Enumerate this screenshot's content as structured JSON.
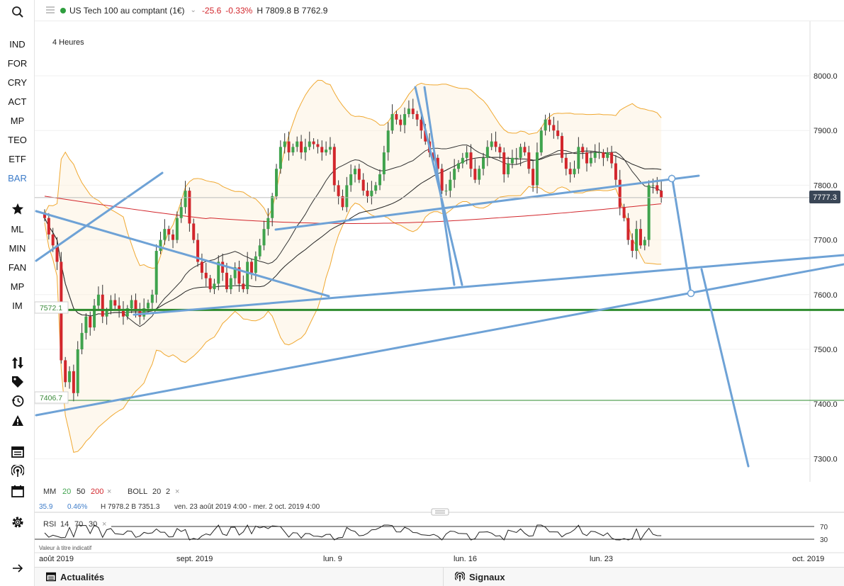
{
  "sidebar": {
    "items": [
      {
        "label": "IND",
        "active": false
      },
      {
        "label": "FOR",
        "active": false
      },
      {
        "label": "CRY",
        "active": false
      },
      {
        "label": "ACT",
        "active": false
      },
      {
        "label": "MP",
        "active": false
      },
      {
        "label": "TEO",
        "active": false
      },
      {
        "label": "ETF",
        "active": false
      },
      {
        "label": "BAR",
        "active": true
      }
    ],
    "tools": [
      {
        "label": "ML"
      },
      {
        "label": "MIN"
      },
      {
        "label": "FAN"
      },
      {
        "label": "MP"
      },
      {
        "label": "IM"
      }
    ],
    "icons": [
      "search-icon",
      "star-icon",
      "sort-arrows-icon",
      "tag-icon",
      "history-icon",
      "warning-icon",
      "news-icon",
      "signal-icon",
      "calendar-icon",
      "settings-icon",
      "arrow-right-icon"
    ]
  },
  "header": {
    "instrument": "US Tech 100 au comptant (1€)",
    "change": "-25.6",
    "change_pct": "-0.33%",
    "high_low": "H 7809.8 B 7762.9",
    "status_color": "#2e9e3e"
  },
  "chart": {
    "timeframe": "4 Heures",
    "current_price": "7777.3",
    "level_high": "7572.1",
    "level_low": "7406.7",
    "indicators": {
      "mm_label": "MM",
      "mm_values": [
        "20",
        "50",
        "200"
      ],
      "mm_colors": [
        "#3fa34d",
        "#222222",
        "#d2262c"
      ],
      "boll_label": "BOLL",
      "boll_values": [
        "20",
        "2"
      ],
      "stat_a": "35.9",
      "stat_b": "0.46%",
      "stat_hb": "H 7978.2  B 7351.3",
      "date_range": "ven. 23 août 2019 4:00 - mer. 2 oct. 2019 4:00"
    },
    "rsi": {
      "label": "RSI",
      "params": [
        "14",
        "70",
        "30"
      ],
      "upper": "70",
      "lower": "30",
      "disclaimer": "Valeur à titre indicatif"
    },
    "x_labels": [
      "août 2019",
      "sept. 2019",
      "lun. 9",
      "lun. 16",
      "lun. 23",
      "oct. 2019"
    ],
    "y_labels": [
      "8000.0",
      "7900.0",
      "7800.0",
      "7700.0",
      "7600.0",
      "7500.0",
      "7400.0",
      "7300.0"
    ]
  },
  "chart_data": {
    "type": "candlestick",
    "ylim": [
      7270,
      8070
    ],
    "y_ticks": [
      8000,
      7900,
      7800,
      7700,
      7600,
      7500,
      7400,
      7300
    ],
    "level_lines": [
      7572.1,
      7406.7
    ],
    "current_price": 7777.3,
    "closes": [
      7740,
      7710,
      7690,
      7660,
      7480,
      7440,
      7460,
      7420,
      7500,
      7530,
      7560,
      7540,
      7580,
      7600,
      7560,
      7570,
      7590,
      7580,
      7570,
      7560,
      7575,
      7590,
      7570,
      7560,
      7575,
      7585,
      7600,
      7680,
      7700,
      7720,
      7710,
      7700,
      7740,
      7760,
      7790,
      7730,
      7700,
      7660,
      7640,
      7630,
      7610,
      7620,
      7660,
      7640,
      7610,
      7630,
      7650,
      7620,
      7610,
      7660,
      7640,
      7670,
      7690,
      7720,
      7740,
      7780,
      7830,
      7870,
      7880,
      7860,
      7870,
      7880,
      7860,
      7870,
      7880,
      7875,
      7870,
      7860,
      7865,
      7870,
      7800,
      7780,
      7760,
      7800,
      7820,
      7830,
      7810,
      7790,
      7780,
      7790,
      7800,
      7820,
      7860,
      7900,
      7930,
      7920,
      7910,
      7930,
      7940,
      7930,
      7920,
      7900,
      7880,
      7860,
      7850,
      7830,
      7790,
      7790,
      7810,
      7830,
      7840,
      7850,
      7860,
      7830,
      7810,
      7830,
      7850,
      7870,
      7880,
      7870,
      7860,
      7820,
      7840,
      7850,
      7850,
      7870,
      7860,
      7830,
      7800,
      7860,
      7900,
      7920,
      7910,
      7900,
      7890,
      7850,
      7830,
      7820,
      7830,
      7870,
      7860,
      7840,
      7850,
      7860,
      7860,
      7850,
      7860,
      7840,
      7810,
      7760,
      7740,
      7700,
      7680,
      7720,
      7690,
      7700,
      7800,
      7800,
      7790,
      7777
    ]
  },
  "footer": {
    "news_label": "Actualités",
    "signals_label": "Signaux"
  }
}
